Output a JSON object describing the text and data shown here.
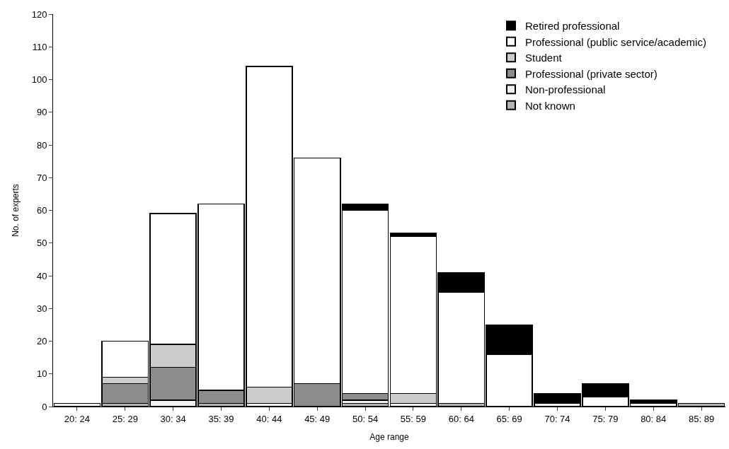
{
  "chart_data": {
    "type": "bar",
    "stacked": true,
    "xlabel": "Age range",
    "ylabel": "No. of experts",
    "categories": [
      "20: 24",
      "25: 29",
      "30: 34",
      "35: 39",
      "40: 44",
      "45: 49",
      "50: 54",
      "55: 59",
      "60: 64",
      "65: 69",
      "70: 74",
      "75: 79",
      "80: 84",
      "85: 89"
    ],
    "series": [
      {
        "name": "Not known",
        "color": "#b4b4b4",
        "values": [
          0,
          1,
          0,
          1,
          0,
          0,
          1,
          0,
          1,
          0,
          0,
          0,
          0,
          1
        ]
      },
      {
        "name": "Non-professional",
        "color": "#f0f0f0",
        "values": [
          1,
          0,
          2,
          0,
          1,
          0,
          1,
          1,
          0,
          0,
          1,
          0,
          1,
          0
        ]
      },
      {
        "name": "Professional (private sector)",
        "color": "#8c8c8c",
        "values": [
          0,
          6,
          10,
          4,
          0,
          7,
          2,
          0,
          0,
          0,
          0,
          0,
          0,
          0
        ]
      },
      {
        "name": "Student",
        "color": "#cccccc",
        "values": [
          0,
          2,
          7,
          0,
          5,
          0,
          0,
          3,
          0,
          0,
          0,
          0,
          0,
          0
        ]
      },
      {
        "name": "Professional (public service/academic)",
        "color": "#ffffff",
        "values": [
          0,
          11,
          40,
          57,
          98,
          69,
          56,
          48,
          34,
          16,
          0,
          3,
          0,
          0
        ]
      },
      {
        "name": "Retired professional",
        "color": "#000000",
        "values": [
          0,
          0,
          0,
          0,
          0,
          0,
          2,
          1,
          6,
          9,
          3,
          4,
          1,
          0
        ]
      }
    ],
    "ylim": [
      0,
      120
    ],
    "yticks": [
      0,
      10,
      20,
      30,
      40,
      50,
      60,
      70,
      80,
      90,
      100,
      110,
      120
    ],
    "grid": false,
    "legend": "top right"
  }
}
